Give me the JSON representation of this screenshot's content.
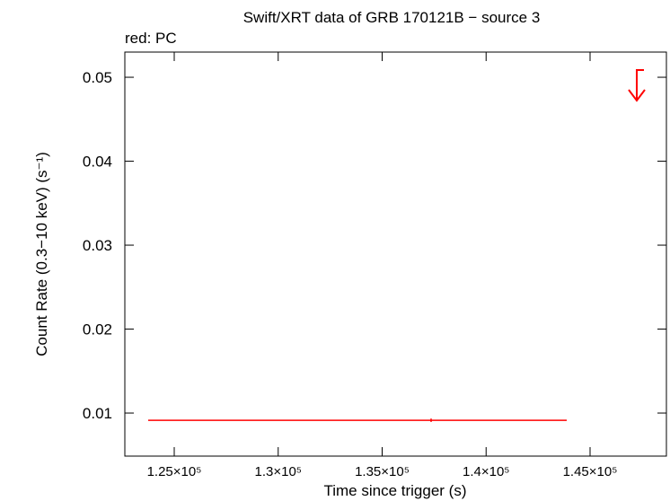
{
  "chart_data": {
    "type": "scatter",
    "title": "Swift/XRT data of GRB 170121B − source 3",
    "subtitle": "red: PC",
    "x_label": "Time since trigger (s)",
    "y_label": "Count Rate (0.3−10 keV) (s⁻¹)",
    "xlim": [
      122624,
      148672
    ],
    "ylim": [
      0.00487,
      0.053
    ],
    "xticks": [
      {
        "value": 125000,
        "label": "1.25×10⁵"
      },
      {
        "value": 130000,
        "label": "1.3×10⁵"
      },
      {
        "value": 135000,
        "label": "1.35×10⁵"
      },
      {
        "value": 140000,
        "label": "1.4×10⁵"
      },
      {
        "value": 145000,
        "label": "1.45×10⁵"
      }
    ],
    "yticks": [
      0.01,
      0.02,
      0.03,
      0.04,
      0.05
    ],
    "series": [
      {
        "color": "#ff0000",
        "x": [
          137354
        ],
        "values": [
          0.00914
        ],
        "xerr_minus": [
          13607
        ],
        "xerr_plus": [
          6523
        ],
        "yerr": [
          0.0002
        ]
      }
    ],
    "upper_limits": {
      "color": "#ff0000",
      "x": [
        147246
      ],
      "values": [
        0.05086
      ]
    }
  }
}
